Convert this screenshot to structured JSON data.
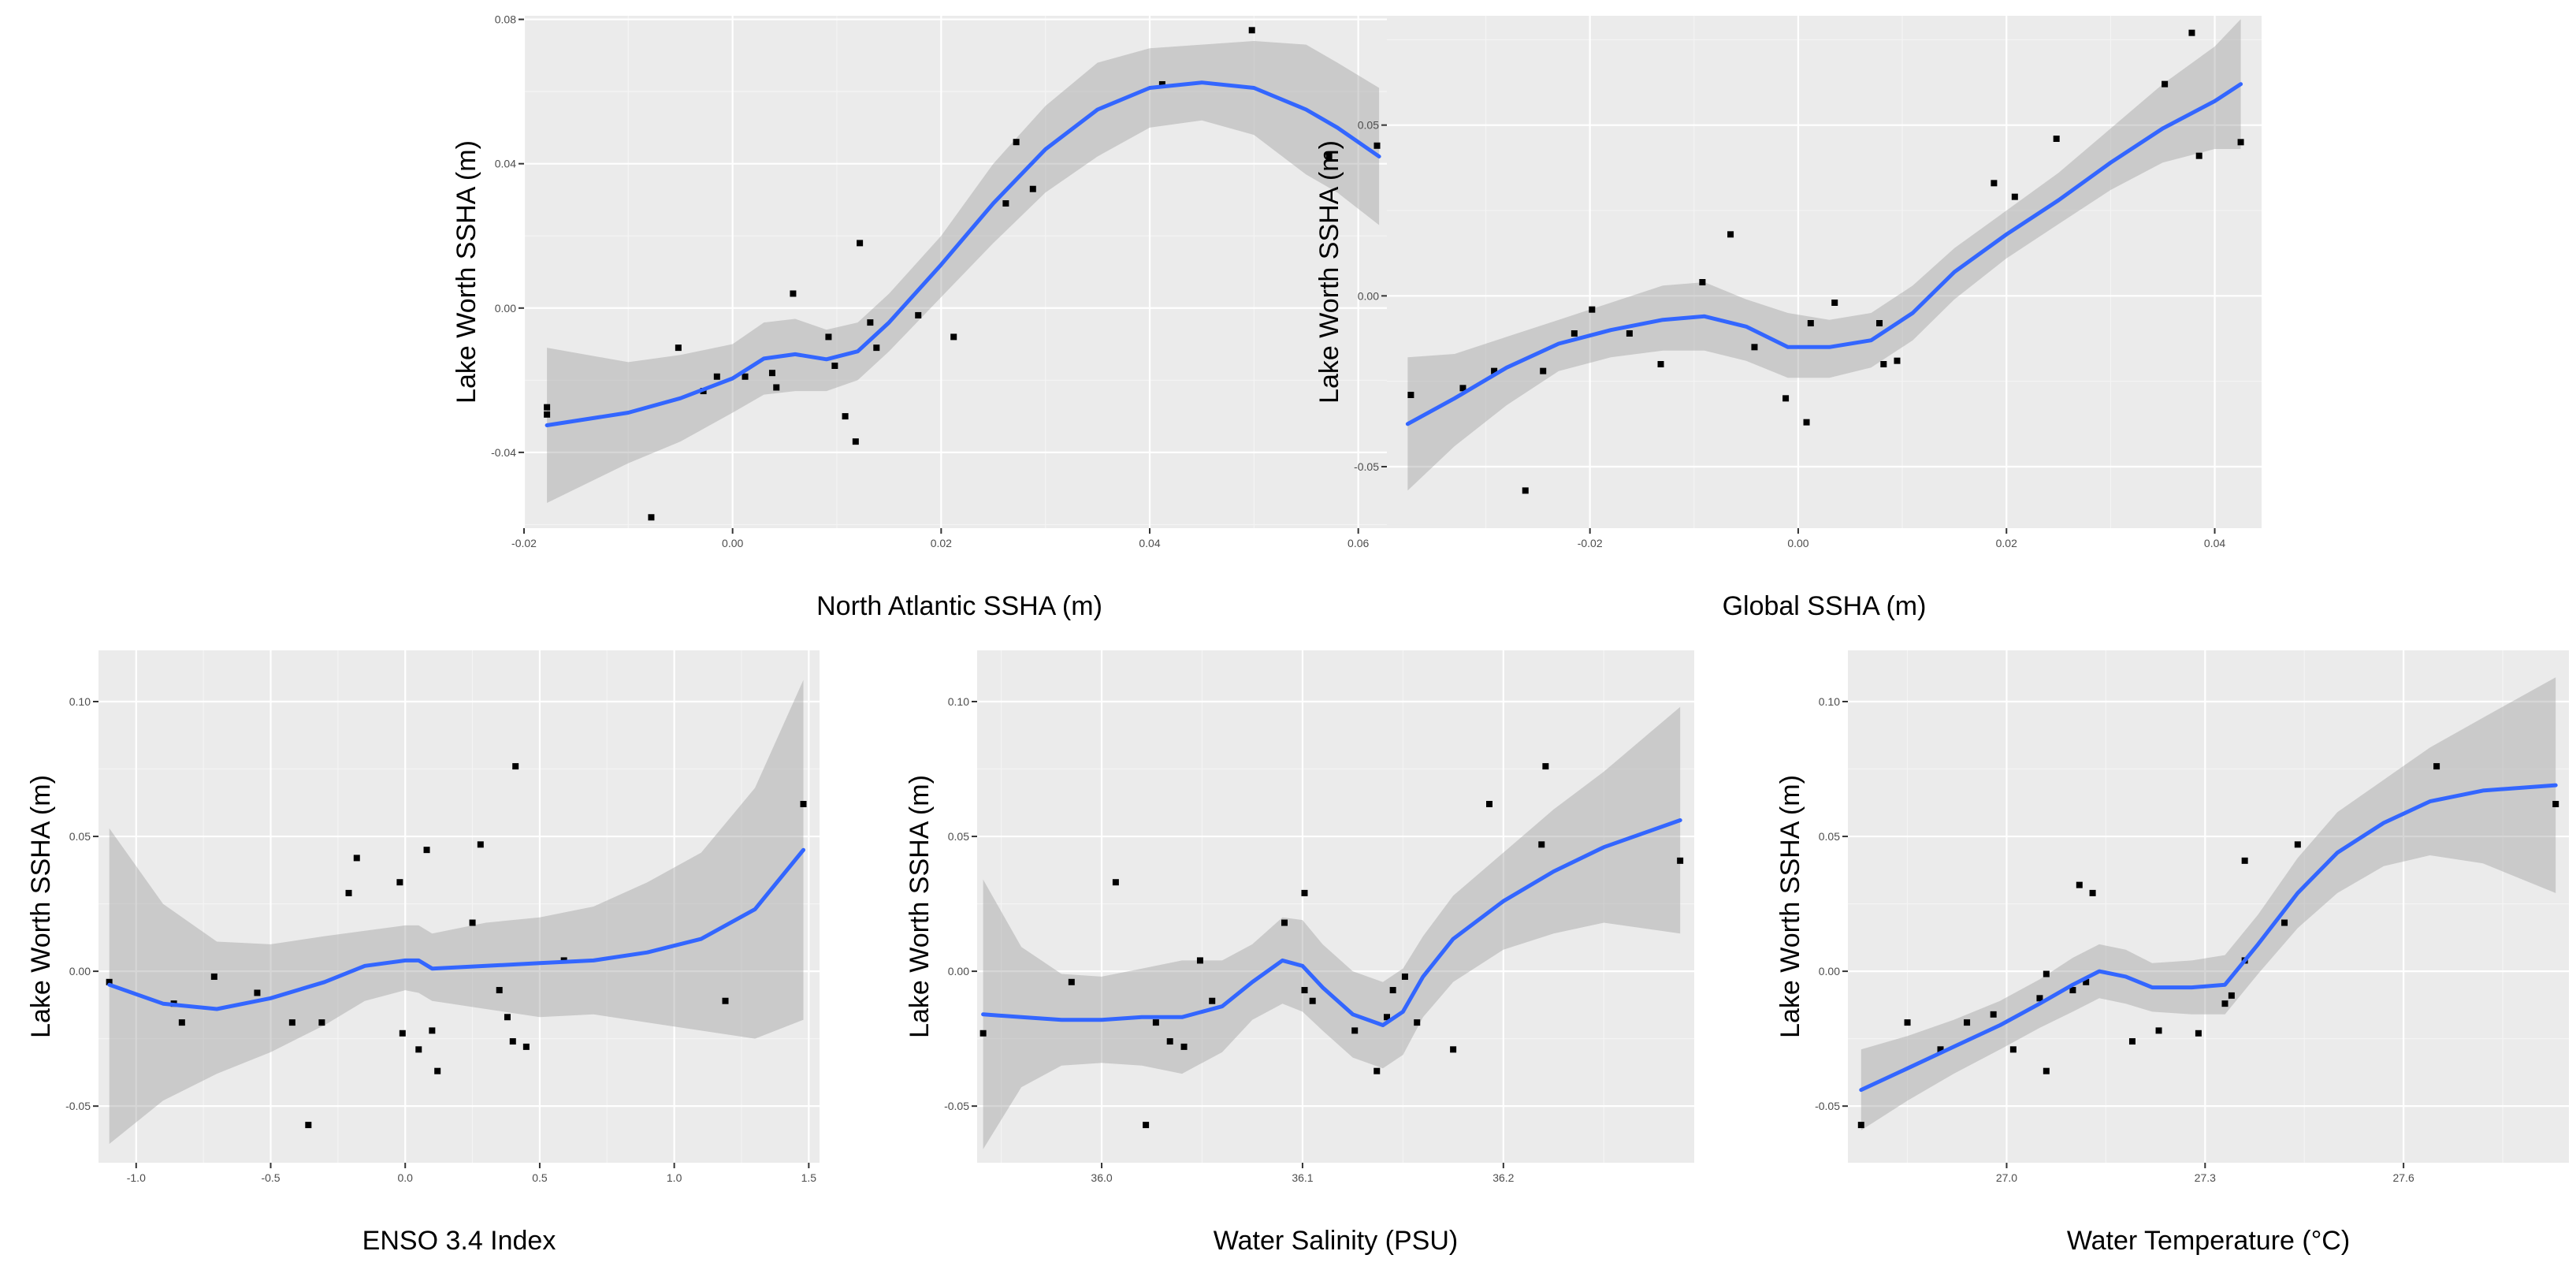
{
  "chart_data": [
    {
      "type": "scatter",
      "smooth": "loess",
      "xlabel": "North Atlantic SSHA (m)",
      "ylabel": "Lake Worth SSHA (m)",
      "xlim": [
        -0.02,
        0.0635
      ],
      "ylim": [
        -0.061,
        0.081
      ],
      "xticks": [
        -0.02,
        0.0,
        0.02,
        0.04,
        0.06
      ],
      "xtick_labels": [
        "-0.02",
        "0.00",
        "0.02",
        "0.04",
        "0.06"
      ],
      "yticks": [
        -0.04,
        0.0,
        0.04,
        0.08
      ],
      "ytick_labels": [
        "-0.04",
        "0.00",
        "0.04",
        "0.08"
      ],
      "points": [
        [
          -0.0178,
          -0.0275
        ],
        [
          -0.0178,
          -0.0295
        ],
        [
          -0.0078,
          -0.058
        ],
        [
          -0.0052,
          -0.011
        ],
        [
          -0.0028,
          -0.023
        ],
        [
          -0.0015,
          -0.019
        ],
        [
          0.0012,
          -0.019
        ],
        [
          0.0038,
          -0.018
        ],
        [
          0.0042,
          -0.022
        ],
        [
          0.0058,
          0.004
        ],
        [
          0.0092,
          -0.008
        ],
        [
          0.0098,
          -0.016
        ],
        [
          0.0108,
          -0.03
        ],
        [
          0.0118,
          -0.037
        ],
        [
          0.0122,
          0.018
        ],
        [
          0.0132,
          -0.004
        ],
        [
          0.0138,
          -0.011
        ],
        [
          0.0178,
          -0.002
        ],
        [
          0.0212,
          -0.008
        ],
        [
          0.0262,
          0.029
        ],
        [
          0.0272,
          0.046
        ],
        [
          0.0288,
          0.033
        ],
        [
          0.0412,
          0.062
        ],
        [
          0.0498,
          0.077
        ],
        [
          0.0572,
          0.042
        ],
        [
          0.0618,
          0.045
        ]
      ],
      "smooth_curve": [
        [
          -0.0178,
          -0.0325
        ],
        [
          -0.01,
          -0.029
        ],
        [
          -0.005,
          -0.025
        ],
        [
          0.0,
          -0.0195
        ],
        [
          0.003,
          -0.014
        ],
        [
          0.006,
          -0.0128
        ],
        [
          0.009,
          -0.0142
        ],
        [
          0.012,
          -0.012
        ],
        [
          0.015,
          -0.004
        ],
        [
          0.02,
          0.012
        ],
        [
          0.025,
          0.029
        ],
        [
          0.03,
          0.044
        ],
        [
          0.035,
          0.055
        ],
        [
          0.04,
          0.061
        ],
        [
          0.045,
          0.0625
        ],
        [
          0.05,
          0.061
        ],
        [
          0.055,
          0.055
        ],
        [
          0.058,
          0.05
        ],
        [
          0.062,
          0.042
        ]
      ],
      "band_upper": [
        -0.011,
        -0.015,
        -0.013,
        -0.01,
        -0.004,
        -0.003,
        -0.006,
        -0.004,
        0.004,
        0.02,
        0.04,
        0.056,
        0.068,
        0.072,
        0.073,
        0.074,
        0.073,
        0.068,
        0.061
      ],
      "band_lower": [
        -0.054,
        -0.043,
        -0.037,
        -0.029,
        -0.024,
        -0.023,
        -0.023,
        -0.02,
        -0.012,
        0.003,
        0.018,
        0.032,
        0.042,
        0.05,
        0.052,
        0.048,
        0.037,
        0.032,
        0.023
      ]
    },
    {
      "type": "scatter",
      "smooth": "loess",
      "xlabel": "Global SSHA (m)",
      "ylabel": "Lake Worth SSHA (m)",
      "xlim": [
        -0.0395,
        0.0445
      ],
      "ylim": [
        -0.068,
        0.082
      ],
      "xticks": [
        -0.02,
        0.0,
        0.02,
        0.04
      ],
      "xtick_labels": [
        "-0.02",
        "0.00",
        "0.02",
        "0.04"
      ],
      "yticks": [
        -0.05,
        0.0,
        0.05
      ],
      "ytick_labels": [
        "-0.05",
        "0.00",
        "0.05"
      ],
      "points": [
        [
          -0.0372,
          -0.029
        ],
        [
          -0.0322,
          -0.027
        ],
        [
          -0.0292,
          -0.022
        ],
        [
          -0.0262,
          -0.057
        ],
        [
          -0.0245,
          -0.022
        ],
        [
          -0.0215,
          -0.011
        ],
        [
          -0.0198,
          -0.004
        ],
        [
          -0.0162,
          -0.011
        ],
        [
          -0.0132,
          -0.02
        ],
        [
          -0.0092,
          0.004
        ],
        [
          -0.0065,
          0.018
        ],
        [
          -0.0042,
          -0.015
        ],
        [
          -0.0012,
          -0.03
        ],
        [
          0.0008,
          -0.037
        ],
        [
          0.0012,
          -0.008
        ],
        [
          0.0035,
          -0.002
        ],
        [
          0.0078,
          -0.008
        ],
        [
          0.0082,
          -0.02
        ],
        [
          0.0095,
          -0.019
        ],
        [
          0.0188,
          0.033
        ],
        [
          0.0208,
          0.029
        ],
        [
          0.0248,
          0.046
        ],
        [
          0.0352,
          0.062
        ],
        [
          0.0378,
          0.077
        ],
        [
          0.0385,
          0.041
        ],
        [
          0.0425,
          0.045
        ]
      ],
      "smooth_curve": [
        [
          -0.0375,
          -0.0375
        ],
        [
          -0.033,
          -0.03
        ],
        [
          -0.028,
          -0.021
        ],
        [
          -0.023,
          -0.014
        ],
        [
          -0.018,
          -0.01
        ],
        [
          -0.013,
          -0.007
        ],
        [
          -0.009,
          -0.006
        ],
        [
          -0.005,
          -0.009
        ],
        [
          -0.001,
          -0.015
        ],
        [
          0.003,
          -0.015
        ],
        [
          0.007,
          -0.013
        ],
        [
          0.011,
          -0.005
        ],
        [
          0.015,
          0.007
        ],
        [
          0.02,
          0.018
        ],
        [
          0.025,
          0.028
        ],
        [
          0.03,
          0.039
        ],
        [
          0.035,
          0.049
        ],
        [
          0.04,
          0.057
        ],
        [
          0.0425,
          0.062
        ]
      ],
      "band_upper": [
        -0.018,
        -0.017,
        -0.012,
        -0.007,
        -0.002,
        0.003,
        0.004,
        -0.001,
        -0.005,
        -0.007,
        -0.005,
        0.003,
        0.014,
        0.025,
        0.036,
        0.049,
        0.062,
        0.073,
        0.081
      ],
      "band_lower": [
        -0.057,
        -0.044,
        -0.032,
        -0.022,
        -0.018,
        -0.016,
        -0.016,
        -0.019,
        -0.024,
        -0.024,
        -0.021,
        -0.013,
        -0.001,
        0.011,
        0.021,
        0.031,
        0.039,
        0.043,
        0.043
      ]
    },
    {
      "type": "scatter",
      "smooth": "loess",
      "xlabel": "ENSO 3.4 Index",
      "ylabel": "Lake Worth SSHA (m)",
      "xlim": [
        -1.14,
        1.54
      ],
      "ylim": [
        -0.071,
        0.119
      ],
      "xticks": [
        -1.0,
        -0.5,
        0.0,
        0.5,
        1.0,
        1.5
      ],
      "xtick_labels": [
        "-1.0",
        "-0.5",
        "0.0",
        "0.5",
        "1.0",
        "1.5"
      ],
      "yticks": [
        -0.05,
        0.0,
        0.05,
        0.1
      ],
      "ytick_labels": [
        "-0.05",
        "0.00",
        "0.05",
        "0.10"
      ],
      "points": [
        [
          -1.1,
          -0.004
        ],
        [
          -0.86,
          -0.012
        ],
        [
          -0.83,
          -0.019
        ],
        [
          -0.71,
          -0.002
        ],
        [
          -0.55,
          -0.008
        ],
        [
          -0.42,
          -0.019
        ],
        [
          -0.36,
          -0.057
        ],
        [
          -0.31,
          -0.019
        ],
        [
          -0.21,
          0.029
        ],
        [
          -0.18,
          0.042
        ],
        [
          -0.02,
          0.033
        ],
        [
          -0.01,
          -0.023
        ],
        [
          0.05,
          -0.029
        ],
        [
          0.08,
          0.045
        ],
        [
          0.1,
          -0.022
        ],
        [
          0.12,
          -0.037
        ],
        [
          0.25,
          0.018
        ],
        [
          0.28,
          0.047
        ],
        [
          0.35,
          -0.007
        ],
        [
          0.38,
          -0.017
        ],
        [
          0.41,
          0.076
        ],
        [
          0.45,
          -0.028
        ],
        [
          0.4,
          -0.026
        ],
        [
          0.59,
          0.004
        ],
        [
          1.19,
          -0.011
        ],
        [
          1.48,
          0.062
        ]
      ],
      "smooth_curve": [
        [
          -1.1,
          -0.005
        ],
        [
          -0.9,
          -0.012
        ],
        [
          -0.7,
          -0.014
        ],
        [
          -0.5,
          -0.01
        ],
        [
          -0.3,
          -0.004
        ],
        [
          -0.15,
          0.002
        ],
        [
          0.0,
          0.004
        ],
        [
          0.05,
          0.004
        ],
        [
          0.1,
          0.001
        ],
        [
          0.3,
          0.002
        ],
        [
          0.5,
          0.003
        ],
        [
          0.7,
          0.004
        ],
        [
          0.9,
          0.007
        ],
        [
          1.1,
          0.012
        ],
        [
          1.3,
          0.023
        ],
        [
          1.48,
          0.045
        ]
      ],
      "band_upper": [
        0.053,
        0.025,
        0.011,
        0.01,
        0.013,
        0.015,
        0.017,
        0.017,
        0.014,
        0.018,
        0.02,
        0.024,
        0.033,
        0.044,
        0.068,
        0.108
      ],
      "band_lower": [
        -0.064,
        -0.048,
        -0.038,
        -0.03,
        -0.02,
        -0.011,
        -0.007,
        -0.008,
        -0.011,
        -0.014,
        -0.017,
        -0.016,
        -0.019,
        -0.022,
        -0.025,
        -0.018
      ]
    },
    {
      "type": "scatter",
      "smooth": "loess",
      "xlabel": "Water Salinity (PSU)",
      "ylabel": "Lake Worth SSHA (m)",
      "xlim": [
        35.938,
        36.295
      ],
      "ylim": [
        -0.071,
        0.119
      ],
      "xticks": [
        36.0,
        36.1,
        36.2
      ],
      "xtick_labels": [
        "36.0",
        "36.1",
        "36.2"
      ],
      "yticks": [
        -0.05,
        0.0,
        0.05,
        0.1
      ],
      "ytick_labels": [
        "-0.05",
        "0.00",
        "0.05",
        "0.10"
      ],
      "points": [
        [
          35.941,
          -0.023
        ],
        [
          35.985,
          -0.004
        ],
        [
          36.007,
          0.033
        ],
        [
          36.022,
          -0.057
        ],
        [
          36.027,
          -0.019
        ],
        [
          36.034,
          -0.026
        ],
        [
          36.041,
          -0.028
        ],
        [
          36.049,
          0.004
        ],
        [
          36.055,
          -0.011
        ],
        [
          36.091,
          0.018
        ],
        [
          36.101,
          0.029
        ],
        [
          36.101,
          -0.007
        ],
        [
          36.105,
          -0.011
        ],
        [
          36.126,
          -0.022
        ],
        [
          36.137,
          -0.037
        ],
        [
          36.142,
          -0.017
        ],
        [
          36.145,
          -0.007
        ],
        [
          36.151,
          -0.002
        ],
        [
          36.157,
          -0.019
        ],
        [
          36.175,
          -0.029
        ],
        [
          36.193,
          0.062
        ],
        [
          36.219,
          0.047
        ],
        [
          36.221,
          0.076
        ],
        [
          36.288,
          0.041
        ]
      ],
      "smooth_curve": [
        [
          35.941,
          -0.016
        ],
        [
          35.96,
          -0.017
        ],
        [
          35.98,
          -0.018
        ],
        [
          36.0,
          -0.018
        ],
        [
          36.02,
          -0.017
        ],
        [
          36.04,
          -0.017
        ],
        [
          36.06,
          -0.013
        ],
        [
          36.075,
          -0.004
        ],
        [
          36.09,
          0.004
        ],
        [
          36.1,
          0.002
        ],
        [
          36.11,
          -0.006
        ],
        [
          36.125,
          -0.016
        ],
        [
          36.14,
          -0.02
        ],
        [
          36.15,
          -0.015
        ],
        [
          36.16,
          -0.002
        ],
        [
          36.175,
          0.012
        ],
        [
          36.2,
          0.026
        ],
        [
          36.225,
          0.037
        ],
        [
          36.25,
          0.046
        ],
        [
          36.288,
          0.056
        ]
      ],
      "band_upper": [
        0.034,
        0.009,
        -0.001,
        -0.002,
        0.001,
        0.004,
        0.004,
        0.01,
        0.02,
        0.019,
        0.01,
        0.0,
        -0.004,
        0.001,
        0.013,
        0.028,
        0.044,
        0.06,
        0.074,
        0.098
      ],
      "band_lower": [
        -0.066,
        -0.043,
        -0.035,
        -0.034,
        -0.035,
        -0.038,
        -0.03,
        -0.018,
        -0.012,
        -0.015,
        -0.022,
        -0.032,
        -0.036,
        -0.031,
        -0.017,
        -0.004,
        0.008,
        0.014,
        0.018,
        0.014
      ]
    },
    {
      "type": "scatter",
      "smooth": "loess",
      "xlabel": "Water Temperature (°C)",
      "ylabel": "Lake Worth SSHA (m)",
      "xlim": [
        26.76,
        27.85
      ],
      "ylim": [
        -0.071,
        0.119
      ],
      "xticks": [
        27.0,
        27.3,
        27.6
      ],
      "xtick_labels": [
        "27.0",
        "27.3",
        "27.6"
      ],
      "yticks": [
        -0.05,
        0.0,
        0.05,
        0.1
      ],
      "ytick_labels": [
        "-0.05",
        "0.00",
        "0.05",
        "0.10"
      ],
      "points": [
        [
          26.78,
          -0.057
        ],
        [
          26.85,
          -0.019
        ],
        [
          26.9,
          -0.029
        ],
        [
          26.94,
          -0.019
        ],
        [
          26.98,
          -0.016
        ],
        [
          27.01,
          -0.029
        ],
        [
          27.05,
          -0.01
        ],
        [
          27.06,
          -0.037
        ],
        [
          27.06,
          -0.001
        ],
        [
          27.1,
          -0.007
        ],
        [
          27.11,
          0.032
        ],
        [
          27.12,
          -0.004
        ],
        [
          27.13,
          0.029
        ],
        [
          27.19,
          -0.026
        ],
        [
          27.23,
          -0.022
        ],
        [
          27.29,
          -0.023
        ],
        [
          27.33,
          -0.012
        ],
        [
          27.34,
          -0.009
        ],
        [
          27.36,
          0.004
        ],
        [
          27.36,
          0.041
        ],
        [
          27.42,
          0.018
        ],
        [
          27.44,
          0.047
        ],
        [
          27.65,
          0.076
        ],
        [
          27.83,
          0.062
        ]
      ],
      "smooth_curve": [
        [
          26.78,
          -0.044
        ],
        [
          26.85,
          -0.036
        ],
        [
          26.92,
          -0.028
        ],
        [
          26.99,
          -0.02
        ],
        [
          27.05,
          -0.012
        ],
        [
          27.1,
          -0.005
        ],
        [
          27.14,
          0.0
        ],
        [
          27.18,
          -0.002
        ],
        [
          27.22,
          -0.006
        ],
        [
          27.28,
          -0.006
        ],
        [
          27.33,
          -0.005
        ],
        [
          27.38,
          0.01
        ],
        [
          27.44,
          0.029
        ],
        [
          27.5,
          0.044
        ],
        [
          27.57,
          0.055
        ],
        [
          27.64,
          0.063
        ],
        [
          27.72,
          0.067
        ],
        [
          27.83,
          0.069
        ]
      ],
      "band_upper": [
        -0.029,
        -0.024,
        -0.018,
        -0.011,
        -0.003,
        0.005,
        0.01,
        0.008,
        0.003,
        0.004,
        0.006,
        0.021,
        0.042,
        0.059,
        0.071,
        0.083,
        0.094,
        0.109
      ],
      "band_lower": [
        -0.059,
        -0.048,
        -0.038,
        -0.029,
        -0.021,
        -0.015,
        -0.01,
        -0.012,
        -0.015,
        -0.016,
        -0.016,
        -0.001,
        0.016,
        0.029,
        0.039,
        0.043,
        0.04,
        0.029
      ]
    }
  ]
}
